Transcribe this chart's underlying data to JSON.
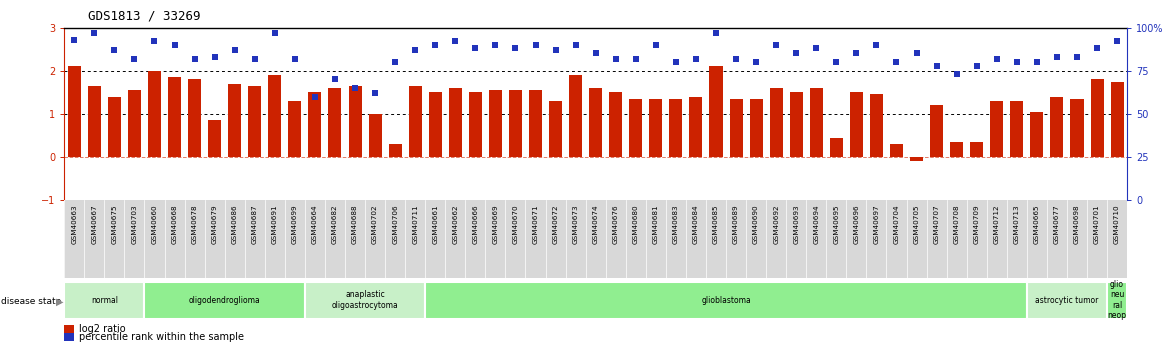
{
  "title": "GDS1813 / 33269",
  "samples": [
    "GSM40663",
    "GSM40667",
    "GSM40675",
    "GSM40703",
    "GSM40660",
    "GSM40668",
    "GSM40678",
    "GSM40679",
    "GSM40686",
    "GSM40687",
    "GSM40691",
    "GSM40699",
    "GSM40664",
    "GSM40682",
    "GSM40688",
    "GSM40702",
    "GSM40706",
    "GSM40711",
    "GSM40661",
    "GSM40662",
    "GSM40666",
    "GSM40669",
    "GSM40670",
    "GSM40671",
    "GSM40672",
    "GSM40673",
    "GSM40674",
    "GSM40676",
    "GSM40680",
    "GSM40681",
    "GSM40683",
    "GSM40684",
    "GSM40685",
    "GSM40689",
    "GSM40690",
    "GSM40692",
    "GSM40693",
    "GSM40694",
    "GSM40695",
    "GSM40696",
    "GSM40697",
    "GSM40704",
    "GSM40705",
    "GSM40707",
    "GSM40708",
    "GSM40709",
    "GSM40712",
    "GSM40713",
    "GSM40665",
    "GSM40677",
    "GSM40698",
    "GSM40701",
    "GSM40710"
  ],
  "log2_ratio": [
    2.1,
    1.65,
    1.4,
    1.55,
    2.0,
    1.85,
    1.8,
    0.85,
    1.7,
    1.65,
    1.9,
    1.3,
    1.5,
    1.6,
    1.65,
    1.0,
    0.3,
    1.65,
    1.5,
    1.6,
    1.5,
    1.55,
    1.55,
    1.55,
    1.3,
    1.9,
    1.6,
    1.5,
    1.35,
    1.35,
    1.35,
    1.4,
    2.1,
    1.35,
    1.35,
    1.6,
    1.5,
    1.6,
    0.45,
    1.5,
    1.45,
    0.3,
    -0.1,
    1.2,
    0.35,
    0.35,
    1.3,
    1.3,
    1.05,
    1.4,
    1.35,
    1.8,
    1.75
  ],
  "percentile": [
    93,
    97,
    87,
    82,
    92,
    90,
    82,
    83,
    87,
    82,
    97,
    82,
    60,
    70,
    65,
    62,
    80,
    87,
    90,
    92,
    88,
    90,
    88,
    90,
    87,
    90,
    85,
    82,
    82,
    90,
    80,
    82,
    97,
    82,
    80,
    90,
    85,
    88,
    80,
    85,
    90,
    80,
    85,
    78,
    73,
    78,
    82,
    80,
    80,
    83,
    83,
    88,
    92
  ],
  "disease_groups": [
    {
      "label": "normal",
      "start": 0,
      "end": 4,
      "color": "#c8f0c8"
    },
    {
      "label": "oligodendroglioma",
      "start": 4,
      "end": 12,
      "color": "#90ee90"
    },
    {
      "label": "anaplastic\noligoastrocytoma",
      "start": 12,
      "end": 18,
      "color": "#c8f0c8"
    },
    {
      "label": "glioblastoma",
      "start": 18,
      "end": 48,
      "color": "#90ee90"
    },
    {
      "label": "astrocytic tumor",
      "start": 48,
      "end": 52,
      "color": "#c8f0c8"
    },
    {
      "label": "glio\nneu\nral\nneop",
      "start": 52,
      "end": 53,
      "color": "#90ee90"
    }
  ],
  "bar_color": "#cc2200",
  "dot_color": "#2233bb",
  "ylim_left": [
    -1.0,
    3.0
  ],
  "ylim_right": [
    0,
    100
  ],
  "yticks_left": [
    -1,
    0,
    1,
    2,
    3
  ],
  "yticks_right": [
    0,
    25,
    50,
    75,
    100
  ],
  "background_color": "#ffffff",
  "plot_bg": "#ffffff"
}
